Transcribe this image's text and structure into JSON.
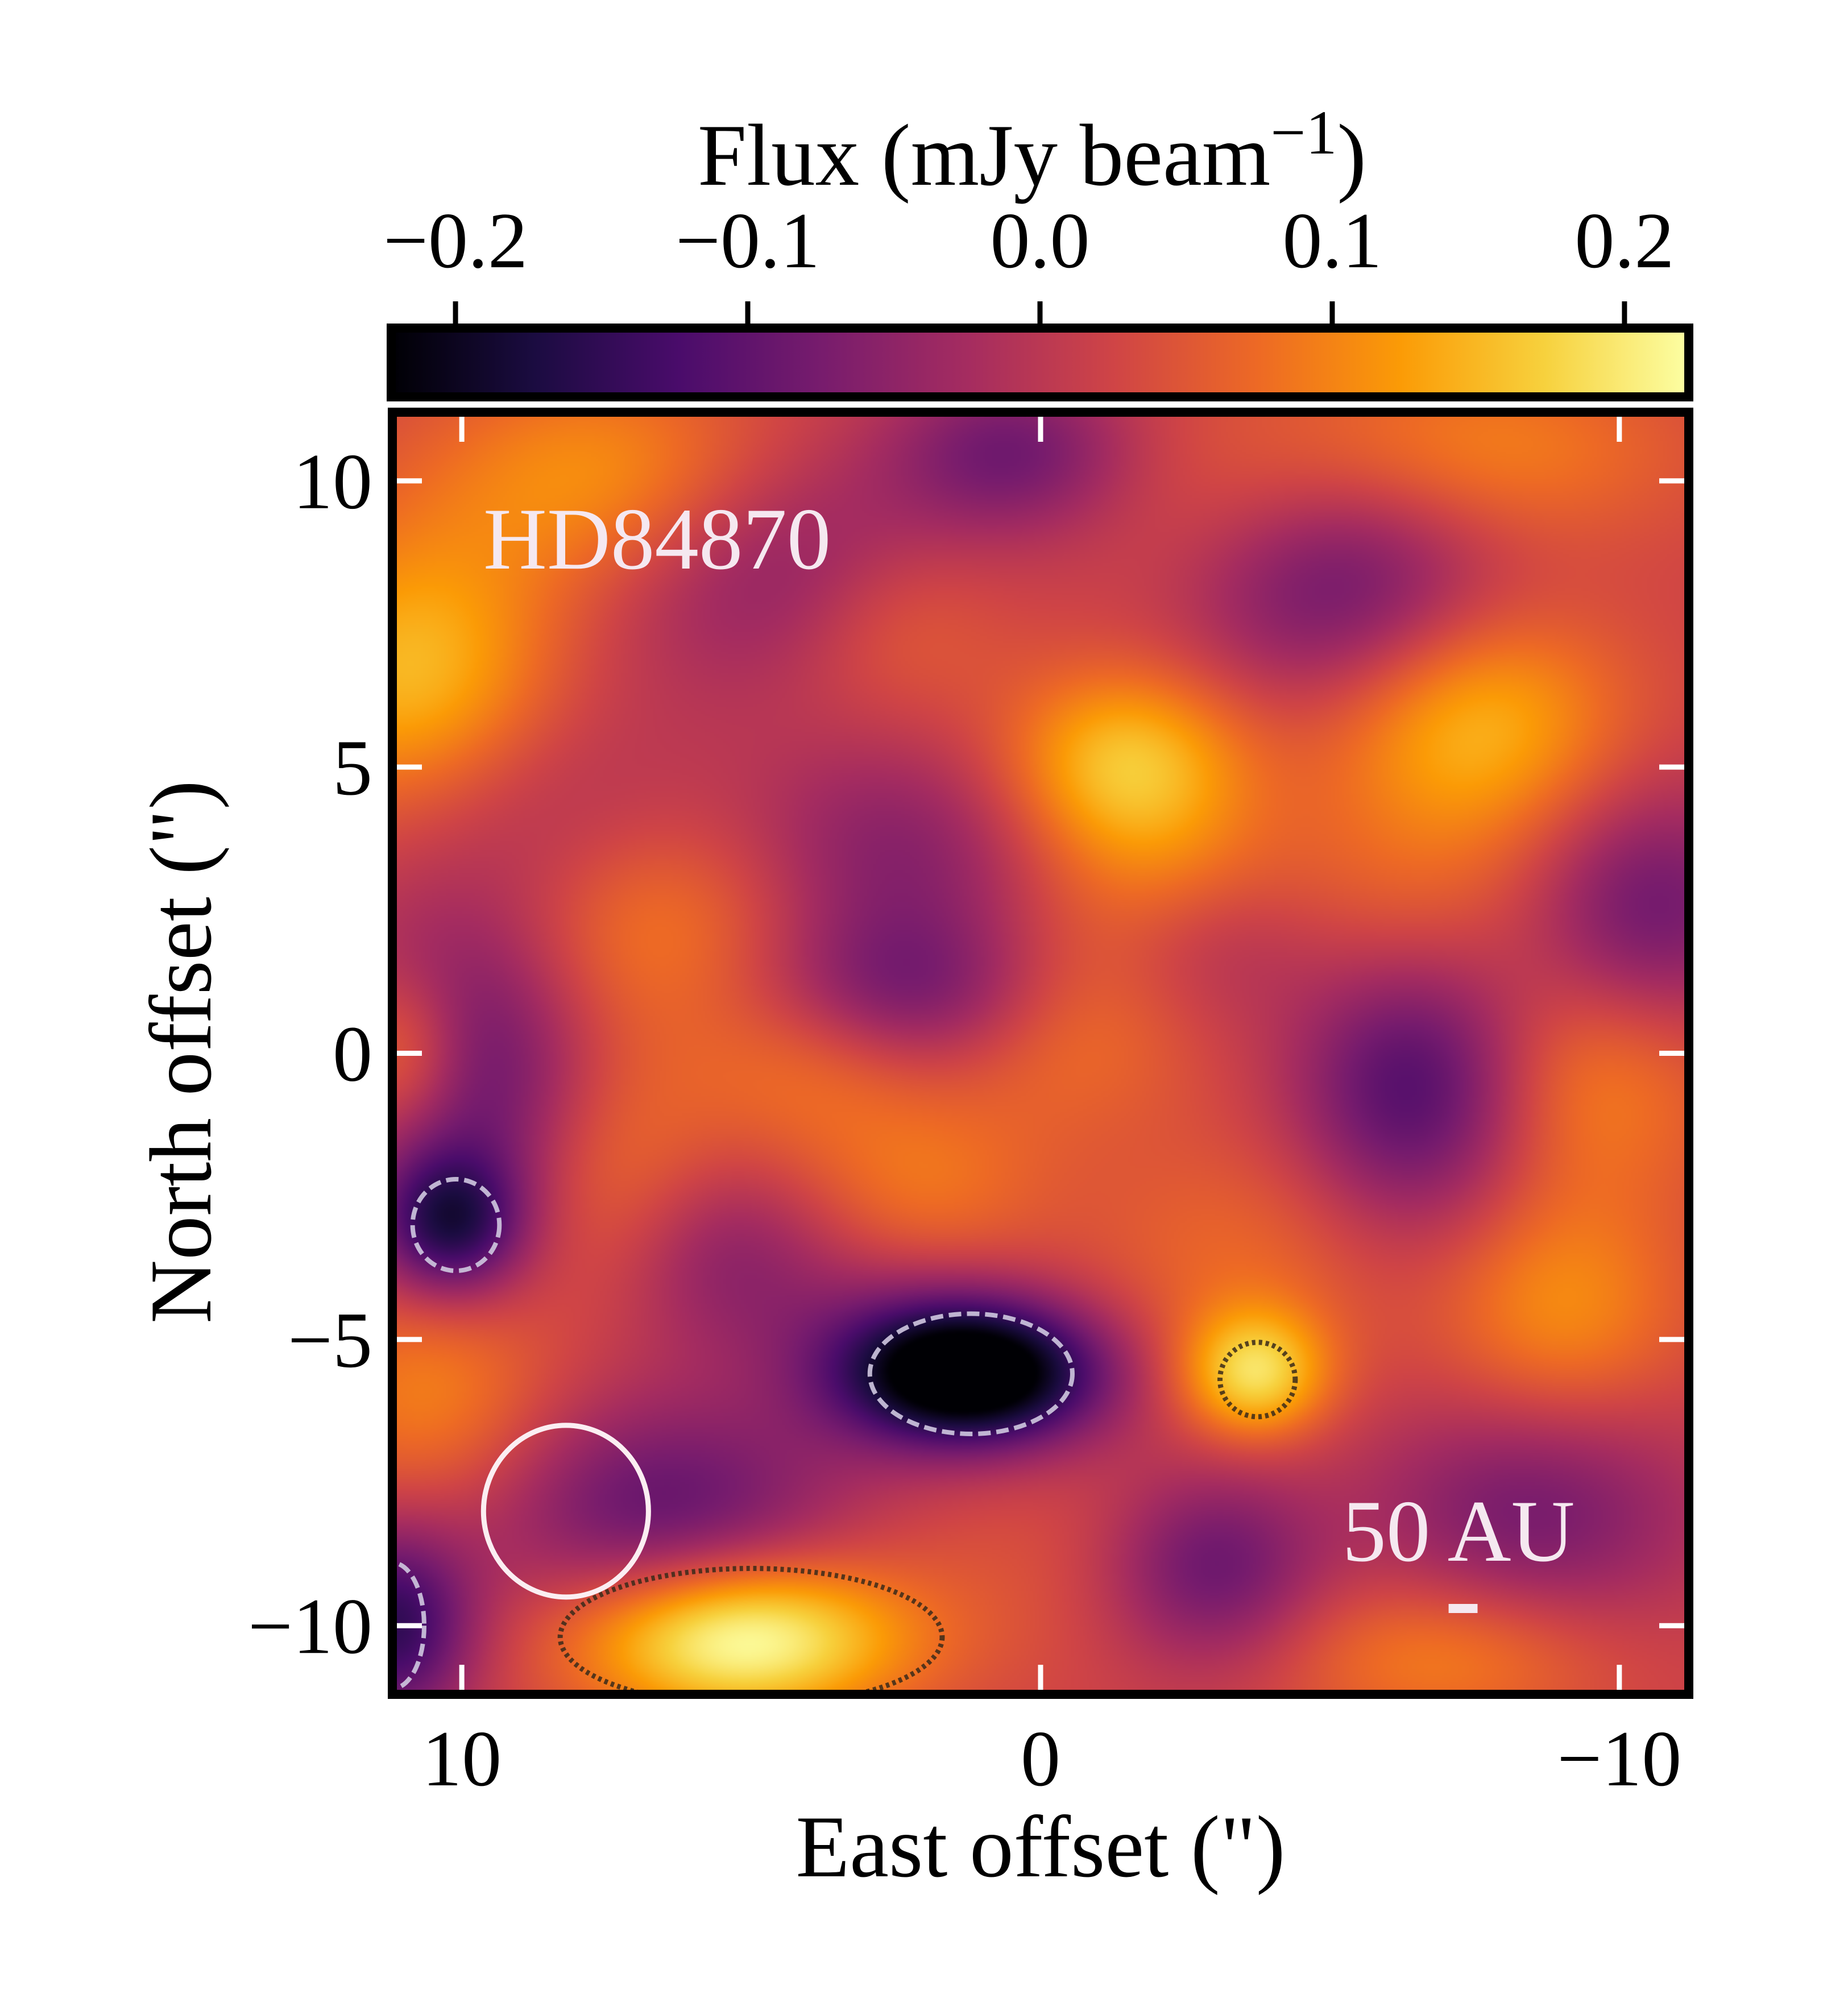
{
  "chart_data": {
    "type": "heatmap",
    "title": "",
    "target_label": "HD84870",
    "scale_bar_label": "50 AU",
    "xlabel": "East offset (\")",
    "ylabel": "North offset (\")",
    "xlim": [
      11.2,
      -11.2
    ],
    "ylim": [
      -11.2,
      11.2
    ],
    "x_ticks": [
      10,
      0,
      -10
    ],
    "x_tick_labels": [
      "10",
      "0",
      "−10"
    ],
    "y_ticks": [
      10,
      5,
      0,
      -5,
      -10
    ],
    "y_tick_labels": [
      "10",
      "5",
      "0",
      "−5",
      "−10"
    ],
    "colorbar": {
      "label_main": "Flux (mJy beam",
      "label_sup": "−1",
      "label_close": ")",
      "range": [
        -0.222,
        0.222
      ],
      "ticks": [
        -0.2,
        -0.1,
        0.0,
        0.1,
        0.2
      ],
      "tick_labels": [
        "−0.2",
        "−0.1",
        "0.0",
        "0.1",
        "0.2"
      ],
      "colormap": "inferno",
      "colors": [
        "#000004",
        "#1b0c41",
        "#4a0c6b",
        "#781c6d",
        "#a52c60",
        "#cf4446",
        "#ed6925",
        "#fb9b06",
        "#f7d13d",
        "#fcffa4"
      ]
    },
    "image_background_value": 0.02,
    "blobs": [
      {
        "x": 7.5,
        "y": 10.0,
        "sx": 2.2,
        "sy": 1.4,
        "amp": 0.1
      },
      {
        "x": 10.8,
        "y": 6.5,
        "sx": 1.8,
        "sy": 1.8,
        "amp": 0.14
      },
      {
        "x": 9.0,
        "y": 4.5,
        "sx": 2.0,
        "sy": 1.5,
        "amp": -0.05
      },
      {
        "x": 4.5,
        "y": 8.5,
        "sx": 2.2,
        "sy": 1.5,
        "amp": -0.09
      },
      {
        "x": 2.5,
        "y": 7.5,
        "sx": 1.4,
        "sy": 1.2,
        "amp": 0.06
      },
      {
        "x": 0.5,
        "y": 10.5,
        "sx": 1.5,
        "sy": 1.0,
        "amp": -0.1
      },
      {
        "x": -3.5,
        "y": 9.0,
        "sx": 1.8,
        "sy": 1.6,
        "amp": 0.05
      },
      {
        "x": -5.0,
        "y": 8.2,
        "sx": 2.0,
        "sy": 1.5,
        "amp": -0.14
      },
      {
        "x": -7.5,
        "y": 10.5,
        "sx": 2.5,
        "sy": 1.2,
        "amp": 0.08
      },
      {
        "x": -1.5,
        "y": 5.0,
        "sx": 1.5,
        "sy": 1.2,
        "amp": 0.15
      },
      {
        "x": -7.5,
        "y": 5.8,
        "sx": 1.8,
        "sy": 1.5,
        "amp": 0.13
      },
      {
        "x": 2.5,
        "y": 3.5,
        "sx": 2.0,
        "sy": 1.4,
        "amp": -0.08
      },
      {
        "x": 6.5,
        "y": 2.0,
        "sx": 1.8,
        "sy": 1.5,
        "amp": 0.08
      },
      {
        "x": 10.2,
        "y": 1.0,
        "sx": 1.5,
        "sy": 1.6,
        "amp": -0.05
      },
      {
        "x": 4.0,
        "y": 0.0,
        "sx": 1.4,
        "sy": 1.3,
        "amp": 0.06
      },
      {
        "x": 2.5,
        "y": 1.1,
        "sx": 2.2,
        "sy": 1.0,
        "amp": -0.11
      },
      {
        "x": -0.5,
        "y": 0.5,
        "sx": 1.5,
        "sy": 1.3,
        "amp": 0.06
      },
      {
        "x": -2.5,
        "y": 1.8,
        "sx": 2.0,
        "sy": 1.3,
        "amp": 0.06
      },
      {
        "x": -2.5,
        "y": 3.0,
        "sx": 1.5,
        "sy": 1.0,
        "amp": 0.05
      },
      {
        "x": -3.0,
        "y": 2.0,
        "sx": 1.5,
        "sy": 1.2,
        "amp": -0.1
      },
      {
        "x": -6.5,
        "y": -0.5,
        "sx": 1.5,
        "sy": 1.8,
        "amp": -0.15
      },
      {
        "x": -6.5,
        "y": 2.5,
        "sx": 1.8,
        "sy": 1.5,
        "amp": 0.05
      },
      {
        "x": -10.5,
        "y": 2.5,
        "sx": 1.5,
        "sy": 1.5,
        "amp": -0.11
      },
      {
        "x": -9.5,
        "y": -0.5,
        "sx": 1.6,
        "sy": 1.5,
        "amp": 0.08
      },
      {
        "x": 11.0,
        "y": 0.0,
        "sx": 0.8,
        "sy": 1.0,
        "amp": 0.1
      },
      {
        "x": 9.5,
        "y": -1.0,
        "sx": 1.5,
        "sy": 1.8,
        "amp": -0.1
      },
      {
        "x": 10.2,
        "y": -3.0,
        "sx": 0.9,
        "sy": 0.9,
        "amp": -0.17
      },
      {
        "x": 7.5,
        "y": -2.0,
        "sx": 1.4,
        "sy": 1.5,
        "amp": 0.07
      },
      {
        "x": 5.5,
        "y": -3.5,
        "sx": 1.3,
        "sy": 1.2,
        "amp": -0.07
      },
      {
        "x": 2.0,
        "y": -2.5,
        "sx": 1.5,
        "sy": 1.3,
        "amp": 0.07
      },
      {
        "x": 2.5,
        "y": -4.5,
        "sx": 1.8,
        "sy": 1.3,
        "amp": -0.05
      },
      {
        "x": 1.2,
        "y": -5.6,
        "sx": 1.6,
        "sy": 0.9,
        "amp": -0.3
      },
      {
        "x": -3.5,
        "y": -3.5,
        "sx": 2.0,
        "sy": 1.5,
        "amp": 0.05
      },
      {
        "x": -3.7,
        "y": -5.6,
        "sx": 0.9,
        "sy": 0.8,
        "amp": 0.16
      },
      {
        "x": -9.0,
        "y": -4.5,
        "sx": 1.5,
        "sy": 1.5,
        "amp": 0.09
      },
      {
        "x": -8.5,
        "y": -8.0,
        "sx": 2.0,
        "sy": 1.5,
        "amp": -0.1
      },
      {
        "x": -3.0,
        "y": -9.0,
        "sx": 1.3,
        "sy": 1.2,
        "amp": -0.11
      },
      {
        "x": 6.5,
        "y": -8.0,
        "sx": 2.2,
        "sy": 1.4,
        "amp": -0.12
      },
      {
        "x": 10.5,
        "y": -6.0,
        "sx": 1.5,
        "sy": 1.5,
        "amp": 0.08
      },
      {
        "x": 5.2,
        "y": -10.2,
        "sx": 2.0,
        "sy": 1.0,
        "amp": 0.22
      },
      {
        "x": 11.2,
        "y": -10.0,
        "sx": 1.0,
        "sy": 1.2,
        "amp": -0.17
      },
      {
        "x": 0.5,
        "y": -9.0,
        "sx": 2.0,
        "sy": 1.5,
        "amp": 0.02
      },
      {
        "x": -7.0,
        "y": -10.5,
        "sx": 2.0,
        "sy": 1.0,
        "amp": 0.08
      }
    ],
    "contours": [
      {
        "name": "negative-contour-east",
        "style": "dashed-white",
        "cx": 10.1,
        "cy": -3.0,
        "rx": 0.75,
        "ry": 0.8
      },
      {
        "name": "negative-contour-center",
        "style": "dashed-white",
        "cx": 1.2,
        "cy": -5.6,
        "rx": 1.75,
        "ry": 1.05
      },
      {
        "name": "negative-contour-corner",
        "style": "dashed-white",
        "cx": 11.2,
        "cy": -10.0,
        "rx": 0.55,
        "ry": 1.1
      },
      {
        "name": "positive-contour-west",
        "style": "dotted-dark",
        "cx": -3.75,
        "cy": -5.7,
        "rx": 0.65,
        "ry": 0.65
      },
      {
        "name": "positive-contour-south",
        "style": "dotted-dark",
        "cx": 5.0,
        "cy": -10.2,
        "rx": 3.3,
        "ry": 1.2
      }
    ],
    "beam": {
      "x": 8.2,
      "y": -8.0,
      "bmaj": 3.0,
      "bmin": 2.85,
      "pa": 0
    },
    "scale_bar": {
      "x": -7.3,
      "y": -9.7,
      "length": 0.5
    }
  }
}
